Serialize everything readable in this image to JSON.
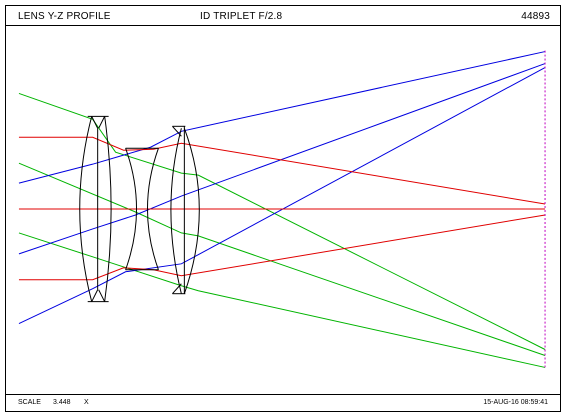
{
  "header": {
    "left_title": "LENS Y-Z PROFILE",
    "center_title": "ID TRIPLET F/2.8",
    "right_id": "44893"
  },
  "footer": {
    "scale_label": "SCALE",
    "scale_value": "3.448",
    "scale_unit": "X",
    "datetime": "15-AUG-16  08:59:41"
  },
  "colors": {
    "lens": "#000000",
    "ray_axial": "#e00000",
    "ray_field_mid": "#00b400",
    "ray_field_full": "#0000e0",
    "image_plane": "#c000c0"
  }
}
